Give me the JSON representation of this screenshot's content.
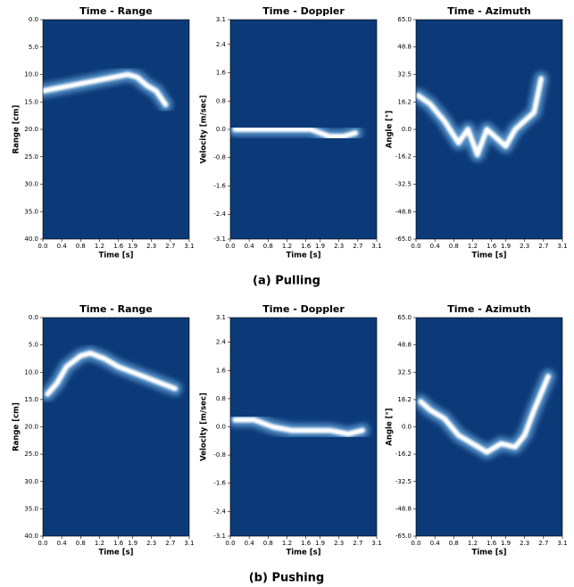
{
  "captions": [
    "(a) Pulling",
    "(b) Pushing"
  ],
  "chart_data": [
    {
      "type": "heatmap",
      "title": "Time - Range",
      "xlabel": "Time [s]",
      "ylabel": "Range [cm]",
      "background": "#0c3a78",
      "color": "#ffffff",
      "xlim": [
        0,
        3.1
      ],
      "ylim": [
        40,
        0
      ],
      "xticks": [
        {
          "value": 0,
          "label": "0.0"
        },
        0.4,
        0.8,
        1.2,
        1.6,
        1.9,
        2.3,
        2.7,
        3.1
      ],
      "yticks": [
        {
          "value": 0,
          "label": "0.0"
        },
        {
          "value": 5,
          "label": "5.0"
        },
        {
          "value": 10,
          "label": "10.0"
        },
        {
          "value": 15,
          "label": "15.0"
        },
        {
          "value": 20,
          "label": "20.0"
        },
        {
          "value": 25,
          "label": "25.0"
        },
        {
          "value": 30,
          "label": "30.0"
        },
        {
          "value": 35,
          "label": "35.0"
        },
        {
          "value": 40,
          "label": "40.0"
        }
      ],
      "x": [
        0,
        0.3,
        0.6,
        0.9,
        1.2,
        1.5,
        1.8,
        2.0,
        2.2,
        2.4,
        2.6
      ],
      "values": [
        13,
        12.5,
        12,
        11.5,
        11,
        10.5,
        10,
        10.5,
        12,
        13,
        15.5
      ]
    },
    {
      "type": "heatmap",
      "title": "Time - Doppler",
      "xlabel": "Time [s]",
      "ylabel": "Velocity [m/sec]",
      "background": "#0c3a78",
      "color": "#ffffff",
      "xlim": [
        0,
        3.1
      ],
      "ylim": [
        -3.1,
        3.1
      ],
      "xticks": [
        {
          "value": 0,
          "label": "0.0"
        },
        0.4,
        0.8,
        1.2,
        1.6,
        1.9,
        2.3,
        2.7,
        3.1
      ],
      "yticks": [
        -3.1,
        -2.4,
        -1.6,
        -0.8,
        {
          "value": 0,
          "label": "0.0"
        },
        0.8,
        1.6,
        2.4,
        3.1
      ],
      "x": [
        0.1,
        0.5,
        0.9,
        1.3,
        1.7,
        2.1,
        2.4,
        2.65
      ],
      "values": [
        0,
        0,
        0,
        0,
        0,
        -0.2,
        -0.2,
        -0.1
      ]
    },
    {
      "type": "heatmap",
      "title": "Time - Azimuth",
      "xlabel": "Time [s]",
      "ylabel": "Angle [°]",
      "background": "#0c3a78",
      "color": "#ffffff",
      "xlim": [
        0,
        3.1
      ],
      "ylim": [
        -65,
        65
      ],
      "xticks": [
        {
          "value": 0,
          "label": "0.0"
        },
        0.4,
        0.8,
        1.2,
        1.6,
        1.9,
        2.3,
        2.7,
        3.1
      ],
      "yticks": [
        {
          "value": -65,
          "label": "-65.0"
        },
        -48.8,
        -32.5,
        -16.2,
        {
          "value": 0,
          "label": "0.0"
        },
        16.2,
        32.5,
        48.8,
        {
          "value": 65,
          "label": "65.0"
        }
      ],
      "x": [
        0.05,
        0.3,
        0.6,
        0.9,
        1.1,
        1.3,
        1.5,
        1.7,
        1.9,
        2.1,
        2.3,
        2.5,
        2.65
      ],
      "values": [
        20,
        15,
        5,
        -8,
        0,
        -15,
        0,
        -5,
        -10,
        0,
        5,
        10,
        30
      ]
    },
    {
      "type": "heatmap",
      "title": "Time - Range",
      "xlabel": "Time [s]",
      "ylabel": "Range [cm]",
      "background": "#0c3a78",
      "color": "#ffffff",
      "xlim": [
        0,
        3.1
      ],
      "ylim": [
        40,
        0
      ],
      "xticks": [
        {
          "value": 0,
          "label": "0.0"
        },
        0.4,
        0.8,
        1.2,
        1.6,
        1.9,
        2.3,
        2.7,
        3.1
      ],
      "yticks": [
        {
          "value": 0,
          "label": "0.0"
        },
        {
          "value": 5,
          "label": "5.0"
        },
        {
          "value": 10,
          "label": "10.0"
        },
        {
          "value": 15,
          "label": "15.0"
        },
        {
          "value": 20,
          "label": "20.0"
        },
        {
          "value": 25,
          "label": "25.0"
        },
        {
          "value": 30,
          "label": "30.0"
        },
        {
          "value": 35,
          "label": "35.0"
        },
        {
          "value": 40,
          "label": "40.0"
        }
      ],
      "x": [
        0.1,
        0.3,
        0.5,
        0.8,
        1.0,
        1.3,
        1.6,
        1.9,
        2.2,
        2.5,
        2.8
      ],
      "values": [
        14,
        12,
        9,
        7,
        6.5,
        7.5,
        9,
        10,
        11,
        12,
        13
      ]
    },
    {
      "type": "heatmap",
      "title": "Time - Doppler",
      "xlabel": "Time [s]",
      "ylabel": "Velocity [m/sec]",
      "background": "#0c3a78",
      "color": "#ffffff",
      "xlim": [
        0,
        3.1
      ],
      "ylim": [
        -3.1,
        3.1
      ],
      "xticks": [
        {
          "value": 0,
          "label": "0.0"
        },
        0.4,
        0.8,
        1.2,
        1.6,
        1.9,
        2.3,
        2.7,
        3.1
      ],
      "yticks": [
        -3.1,
        -2.4,
        -1.6,
        -0.8,
        {
          "value": 0,
          "label": "0.0"
        },
        0.8,
        1.6,
        2.4,
        3.1
      ],
      "x": [
        0.1,
        0.5,
        0.9,
        1.3,
        1.7,
        2.1,
        2.5,
        2.8
      ],
      "values": [
        0.2,
        0.2,
        0,
        -0.1,
        -0.1,
        -0.1,
        -0.2,
        -0.1
      ]
    },
    {
      "type": "heatmap",
      "title": "Time - Azimuth",
      "xlabel": "Time [s]",
      "ylabel": "Angle [°]",
      "background": "#0c3a78",
      "color": "#ffffff",
      "xlim": [
        0,
        3.1
      ],
      "ylim": [
        -65,
        65
      ],
      "xticks": [
        {
          "value": 0,
          "label": "0.0"
        },
        0.4,
        0.8,
        1.2,
        1.6,
        1.9,
        2.3,
        2.7,
        3.1
      ],
      "yticks": [
        {
          "value": -65,
          "label": "-65.0"
        },
        -48.8,
        -32.5,
        -16.2,
        {
          "value": 0,
          "label": "0.0"
        },
        16.2,
        32.5,
        48.8,
        {
          "value": 65,
          "label": "65.0"
        }
      ],
      "x": [
        0.1,
        0.3,
        0.6,
        0.9,
        1.2,
        1.5,
        1.8,
        2.1,
        2.3,
        2.5,
        2.8
      ],
      "values": [
        15,
        10,
        5,
        -5,
        -10,
        -15,
        -10,
        -12,
        -5,
        10,
        30
      ]
    }
  ]
}
